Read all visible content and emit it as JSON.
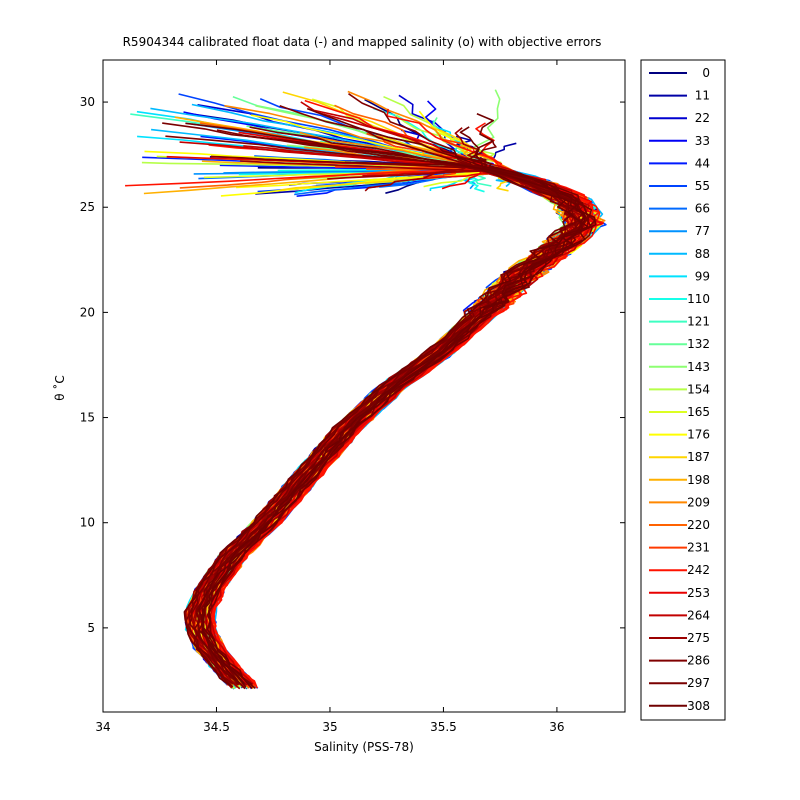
{
  "chart_data": {
    "type": "line",
    "title": "R5904344 calibrated float data (-) and mapped salinity (o) with objective errors",
    "xlabel": "Salinity (PSS-78)",
    "ylabel": "θ ˚C",
    "xlim": [
      34,
      36.3
    ],
    "ylim": [
      1,
      32
    ],
    "xticks": [
      34,
      34.5,
      35,
      35.5,
      36
    ],
    "xtick_labels": [
      "34",
      "34.5",
      "35",
      "35.5",
      "36"
    ],
    "yticks": [
      5,
      10,
      15,
      20,
      25,
      30
    ],
    "ytick_labels": [
      "5",
      "10",
      "15",
      "20",
      "25",
      "30"
    ],
    "grid": false,
    "legend_position": "right-outside",
    "legend": {
      "entries": [
        "0",
        "11",
        "22",
        "33",
        "44",
        "55",
        "66",
        "77",
        "88",
        "99",
        "110",
        "121",
        "132",
        "143",
        "154",
        "165",
        "176",
        "187",
        "198",
        "209",
        "220",
        "231",
        "242",
        "253",
        "264",
        "275",
        "286",
        "297",
        "308"
      ],
      "colors": [
        "#000080",
        "#0000a6",
        "#0000d0",
        "#0000f5",
        "#001aff",
        "#0044ff",
        "#006aff",
        "#0092ff",
        "#00baff",
        "#00e2ff",
        "#16ffe9",
        "#3dffc2",
        "#66ff99",
        "#8dff72",
        "#b6ff49",
        "#dcff22",
        "#ffff00",
        "#ffd600",
        "#ffb000",
        "#ff8800",
        "#ff6200",
        "#ff3a00",
        "#ff1200",
        "#e80000",
        "#c20000",
        "#9c0000",
        "#800000",
        "#7a0000",
        "#700000"
      ]
    },
    "series_profile": {
      "mean": [
        [
          34.63,
          2.1
        ],
        [
          34.55,
          3.0
        ],
        [
          34.47,
          4.0
        ],
        [
          34.43,
          5.0
        ],
        [
          34.43,
          5.8
        ],
        [
          34.48,
          7.0
        ],
        [
          34.58,
          8.5
        ],
        [
          34.72,
          10.0
        ],
        [
          34.88,
          12.0
        ],
        [
          35.08,
          14.5
        ],
        [
          35.28,
          16.5
        ],
        [
          35.5,
          18.2
        ],
        [
          35.68,
          20.0
        ],
        [
          35.85,
          21.8
        ],
        [
          36.02,
          23.2
        ],
        [
          36.12,
          24.2
        ],
        [
          36.07,
          25.3
        ],
        [
          35.9,
          26.2
        ],
        [
          35.65,
          27.0
        ],
        [
          35.3,
          27.6
        ],
        [
          35.0,
          28.2
        ]
      ],
      "salinity_offset_range": [
        -0.06,
        0.06
      ],
      "surface_fresh_range": [
        34.1,
        35.8
      ],
      "surface_temp_range": [
        25.5,
        30.6
      ]
    }
  }
}
